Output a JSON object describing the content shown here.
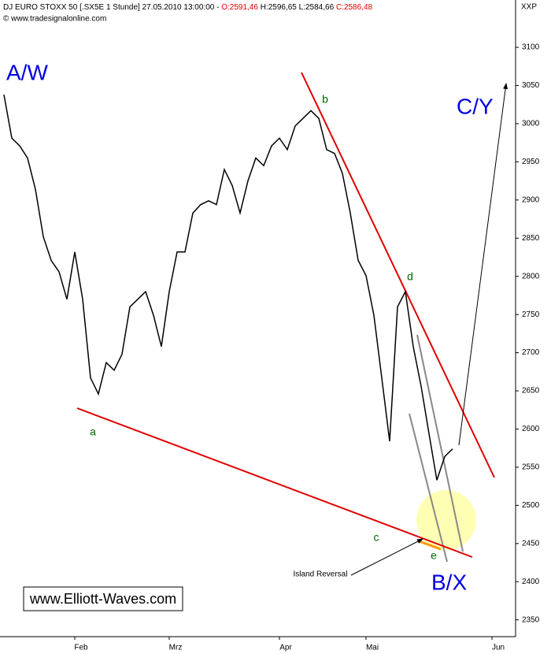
{
  "chart_data": {
    "type": "line",
    "title": "DJ EURO STOXX 50 [.SX5E  1 Stunde] 27.05.2010 13:00:00 -",
    "ohlc_labels": [
      "O:2591,46",
      "H:2596,65",
      "L:2584,66",
      "C:2586,48"
    ],
    "source": "© www.tradesignalonline.com",
    "axis_label": "XXP",
    "color": "#000000",
    "grid": false,
    "categories": [
      null,
      null,
      null,
      null,
      null,
      null,
      null,
      null,
      null,
      "Feb",
      null,
      null,
      null,
      null,
      null,
      null,
      null,
      null,
      null,
      null,
      null,
      "Mrz",
      null,
      null,
      null,
      null,
      null,
      null,
      null,
      null,
      null,
      null,
      null,
      null,
      null,
      "Apr",
      null,
      null,
      null,
      null,
      null,
      null,
      null,
      null,
      null,
      null,
      "Mai",
      null,
      null,
      null,
      null,
      null,
      null,
      null,
      null,
      null,
      null,
      null,
      null,
      null,
      null,
      null,
      "Jun",
      null,
      null,
      null
    ],
    "values": [
      3038,
      2981,
      2971,
      2955,
      2914,
      2852,
      2821,
      2806,
      2770,
      2832,
      2770,
      2667,
      2646,
      2687,
      2677,
      2698,
      2760,
      2770,
      2780,
      2749,
      2708,
      2780,
      2832,
      2832,
      2883,
      2894,
      2899,
      2894,
      2940,
      2919,
      2883,
      2925,
      2955,
      2945,
      2971,
      2981,
      2966,
      2997,
      3007,
      3017,
      3007,
      2966,
      2961,
      2935,
      2883,
      2821,
      2801,
      2749,
      2667,
      2584,
      2760,
      2780,
      2708,
      2656,
      2594,
      2533,
      2564,
      2574,
      null,
      null,
      null,
      null,
      null,
      null,
      null,
      null
    ],
    "ylim": [
      2328,
      3162
    ],
    "yticks": [
      2350,
      2400,
      2450,
      2500,
      2550,
      2600,
      2650,
      2700,
      2750,
      2800,
      2850,
      2900,
      2950,
      3000,
      3050,
      3100
    ],
    "annotations": [
      "A/W",
      "C/Y",
      "B/X",
      "a",
      "b",
      "c",
      "d",
      "e",
      "Island Reversal",
      "www.Elliott-Waves.com"
    ]
  }
}
